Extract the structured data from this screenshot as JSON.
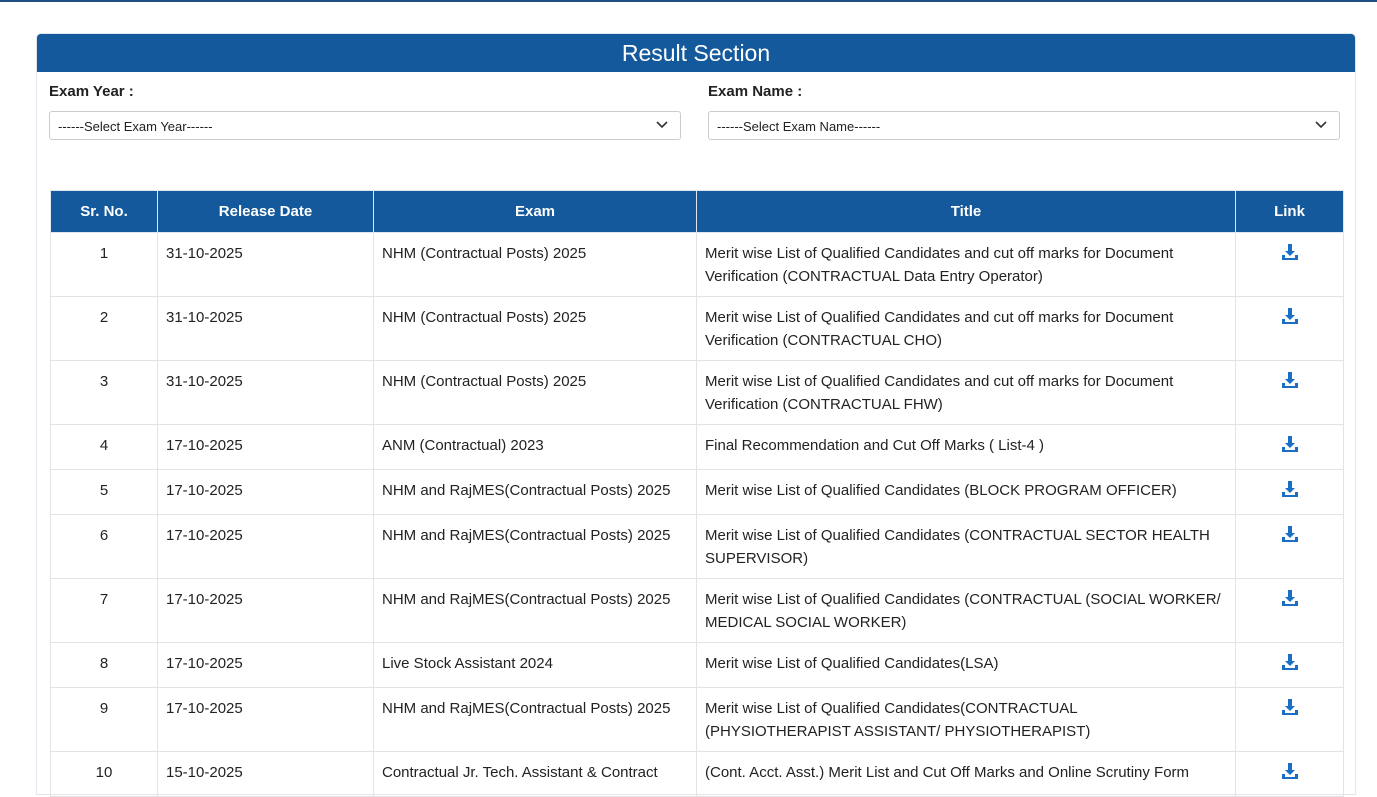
{
  "header": {
    "title": "Result Section"
  },
  "filters": [
    {
      "label": "Exam Year :",
      "placeholder": "------Select Exam Year------"
    },
    {
      "label": "Exam Name :",
      "placeholder": "------Select Exam Name------"
    }
  ],
  "table": {
    "columns": [
      "Sr. No.",
      "Release Date",
      "Exam",
      "Title",
      "Link"
    ],
    "rows": [
      [
        "1",
        "31-10-2025",
        "NHM (Contractual Posts) 2025",
        "Merit wise List of Qualified Candidates and cut off marks for Document Verification (CONTRACTUAL Data Entry Operator)"
      ],
      [
        "2",
        "31-10-2025",
        "NHM (Contractual Posts) 2025",
        "Merit wise List of Qualified Candidates and cut off marks for Document Verification (CONTRACTUAL CHO)"
      ],
      [
        "3",
        "31-10-2025",
        "NHM (Contractual Posts) 2025",
        "Merit wise List of Qualified Candidates and cut off marks for Document Verification (CONTRACTUAL FHW)"
      ],
      [
        "4",
        "17-10-2025",
        "ANM (Contractual) 2023",
        "Final Recommendation and Cut Off Marks ( List-4 )"
      ],
      [
        "5",
        "17-10-2025",
        "NHM and RajMES(Contractual Posts) 2025",
        "Merit wise List of Qualified Candidates (BLOCK PROGRAM OFFICER)"
      ],
      [
        "6",
        "17-10-2025",
        "NHM and RajMES(Contractual Posts) 2025",
        "Merit wise List of Qualified Candidates (CONTRACTUAL SECTOR HEALTH SUPERVISOR)"
      ],
      [
        "7",
        "17-10-2025",
        "NHM and RajMES(Contractual Posts) 2025",
        "Merit wise List of Qualified Candidates (CONTRACTUAL (SOCIAL WORKER/ MEDICAL SOCIAL WORKER)"
      ],
      [
        "8",
        "17-10-2025",
        "Live Stock Assistant 2024",
        "Merit wise List of Qualified Candidates(LSA)"
      ],
      [
        "9",
        "17-10-2025",
        "NHM and RajMES(Contractual Posts) 2025",
        "Merit wise List of Qualified Candidates(CONTRACTUAL (PHYSIOTHERAPIST ASSISTANT/ PHYSIOTHERAPIST)"
      ],
      [
        "10",
        "15-10-2025",
        "Contractual Jr. Tech. Assistant & Contract",
        "(Cont. Acct. Asst.) Merit List and Cut Off Marks and Online Scrutiny Form"
      ]
    ]
  }
}
